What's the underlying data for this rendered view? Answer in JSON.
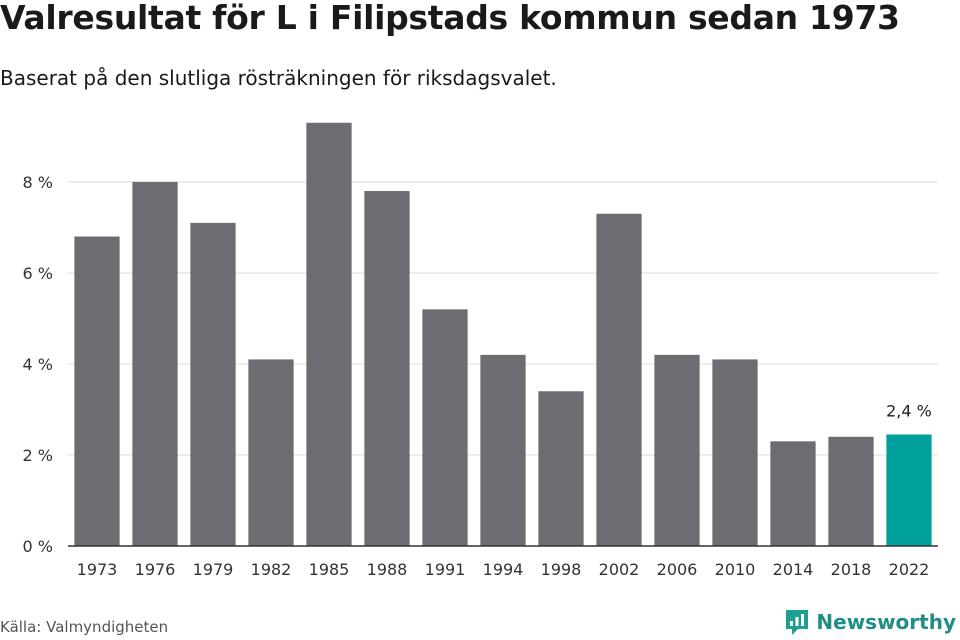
{
  "title": "Valresultat för L i Filipstads kommun sedan 1973",
  "subtitle": "Baserat på den slutliga rösträkningen för riksdagsvalet.",
  "source": "Källa: Valmyndigheten",
  "brand": {
    "name": "Newsworthy",
    "icon": "newsworthy-logo-icon",
    "color": "#1f9e93"
  },
  "colors": {
    "bar": "#6d6c72",
    "highlight": "#00a19a",
    "grid": "#dddddd",
    "axis": "#333333"
  },
  "chart_data": {
    "type": "bar",
    "title": "Valresultat för L i Filipstads kommun sedan 1973",
    "subtitle": "Baserat på den slutliga rösträkningen för riksdagsvalet.",
    "categories": [
      "1973",
      "1976",
      "1979",
      "1982",
      "1985",
      "1988",
      "1991",
      "1994",
      "1998",
      "2002",
      "2006",
      "2010",
      "2014",
      "2018",
      "2022"
    ],
    "values": [
      6.8,
      8.0,
      7.1,
      4.1,
      9.3,
      7.8,
      5.2,
      4.2,
      3.4,
      7.3,
      4.2,
      4.1,
      2.3,
      2.4,
      2.45
    ],
    "ylim": [
      0,
      9.8
    ],
    "yticks": [
      0,
      2,
      4,
      6,
      8
    ],
    "ytick_labels": [
      "0 %",
      "2 %",
      "4 %",
      "6 %",
      "8 %"
    ],
    "grid": true,
    "highlight_index": 14,
    "data_labels": [
      {
        "index": 14,
        "text": "2,4 %"
      }
    ]
  }
}
